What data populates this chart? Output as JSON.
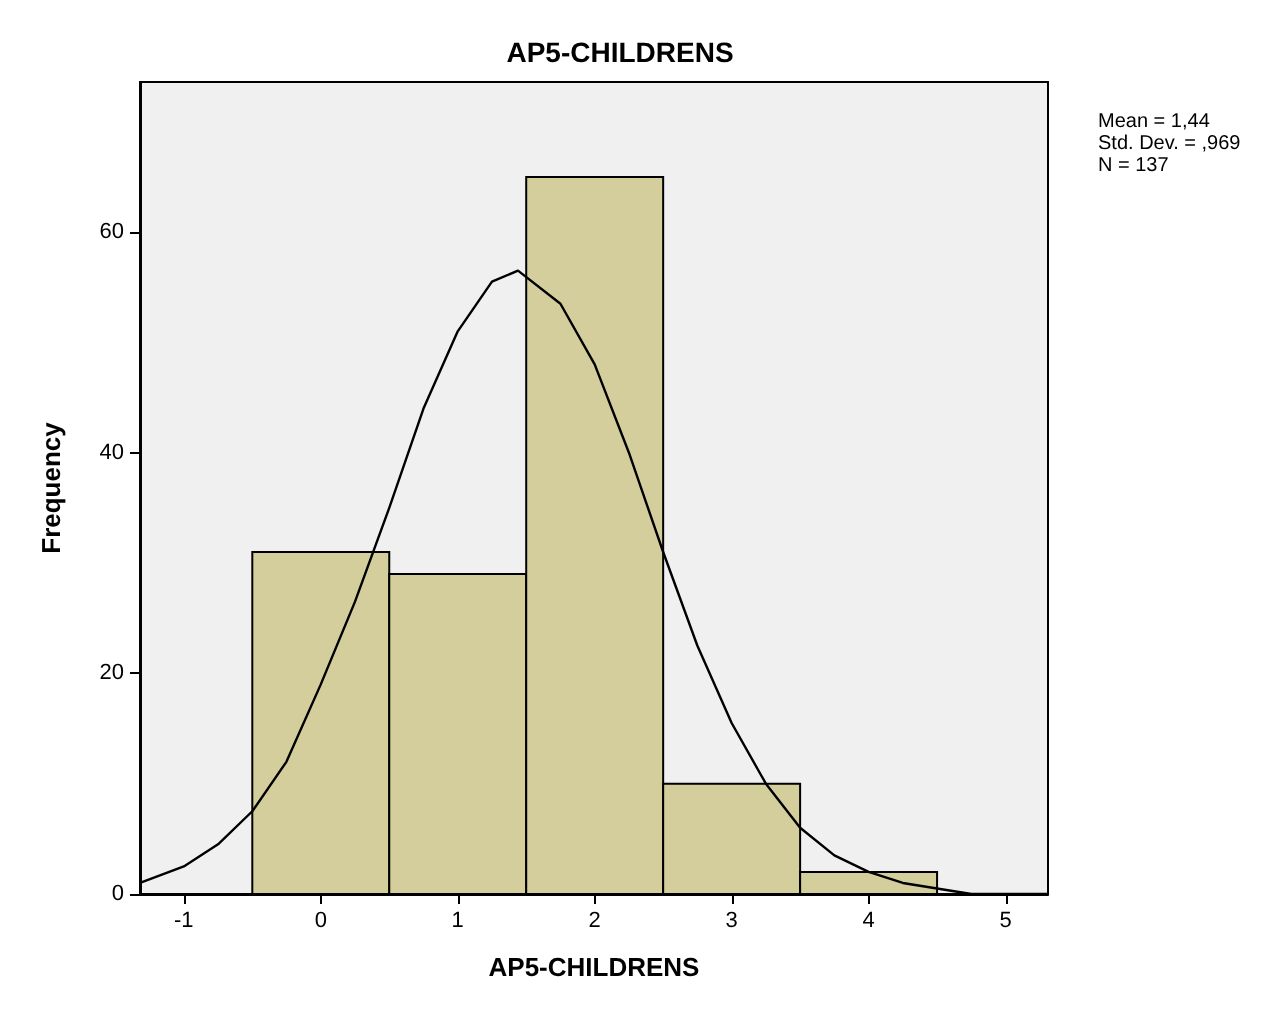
{
  "chart_data": {
    "type": "histogram",
    "title": "AP5-CHILDRENS",
    "xlabel": "AP5-CHILDRENS",
    "ylabel": "Frequency",
    "annotations": [
      "Mean = 1,44",
      "Std. Dev. = ,969",
      "N = 137"
    ],
    "series": [
      {
        "bins": [
          -0.5,
          0.5,
          1.5,
          2.5,
          3.5,
          4.5
        ],
        "values": [
          31,
          29,
          65,
          10,
          2
        ],
        "color": "#d3ce9b"
      },
      {
        "type": "line",
        "color": "#000000",
        "x": [
          -1.32,
          -1,
          -0.75,
          -0.5,
          -0.25,
          0,
          0.25,
          0.5,
          0.75,
          1,
          1.25,
          1.44,
          1.75,
          2,
          2.25,
          2.5,
          2.75,
          3,
          3.25,
          3.5,
          3.75,
          4,
          4.25,
          4.5,
          4.75,
          5,
          5.31
        ],
        "values": [
          1,
          2.5,
          4.5,
          7.5,
          12,
          19,
          26.5,
          35,
          44,
          51,
          55.5,
          56.5,
          53.5,
          48,
          40,
          31,
          22.5,
          15.5,
          10,
          6,
          3.5,
          2,
          1,
          0.5,
          0,
          0,
          0
        ]
      }
    ],
    "xlim": [
      -1.32,
      5.31
    ],
    "xticks": [
      -1,
      0,
      1,
      2,
      3,
      4,
      5
    ],
    "ylim": [
      0,
      73.6
    ],
    "yticks": [
      0,
      20,
      40,
      60
    ],
    "grid": false,
    "marker": "none",
    "line_style": "solid"
  }
}
